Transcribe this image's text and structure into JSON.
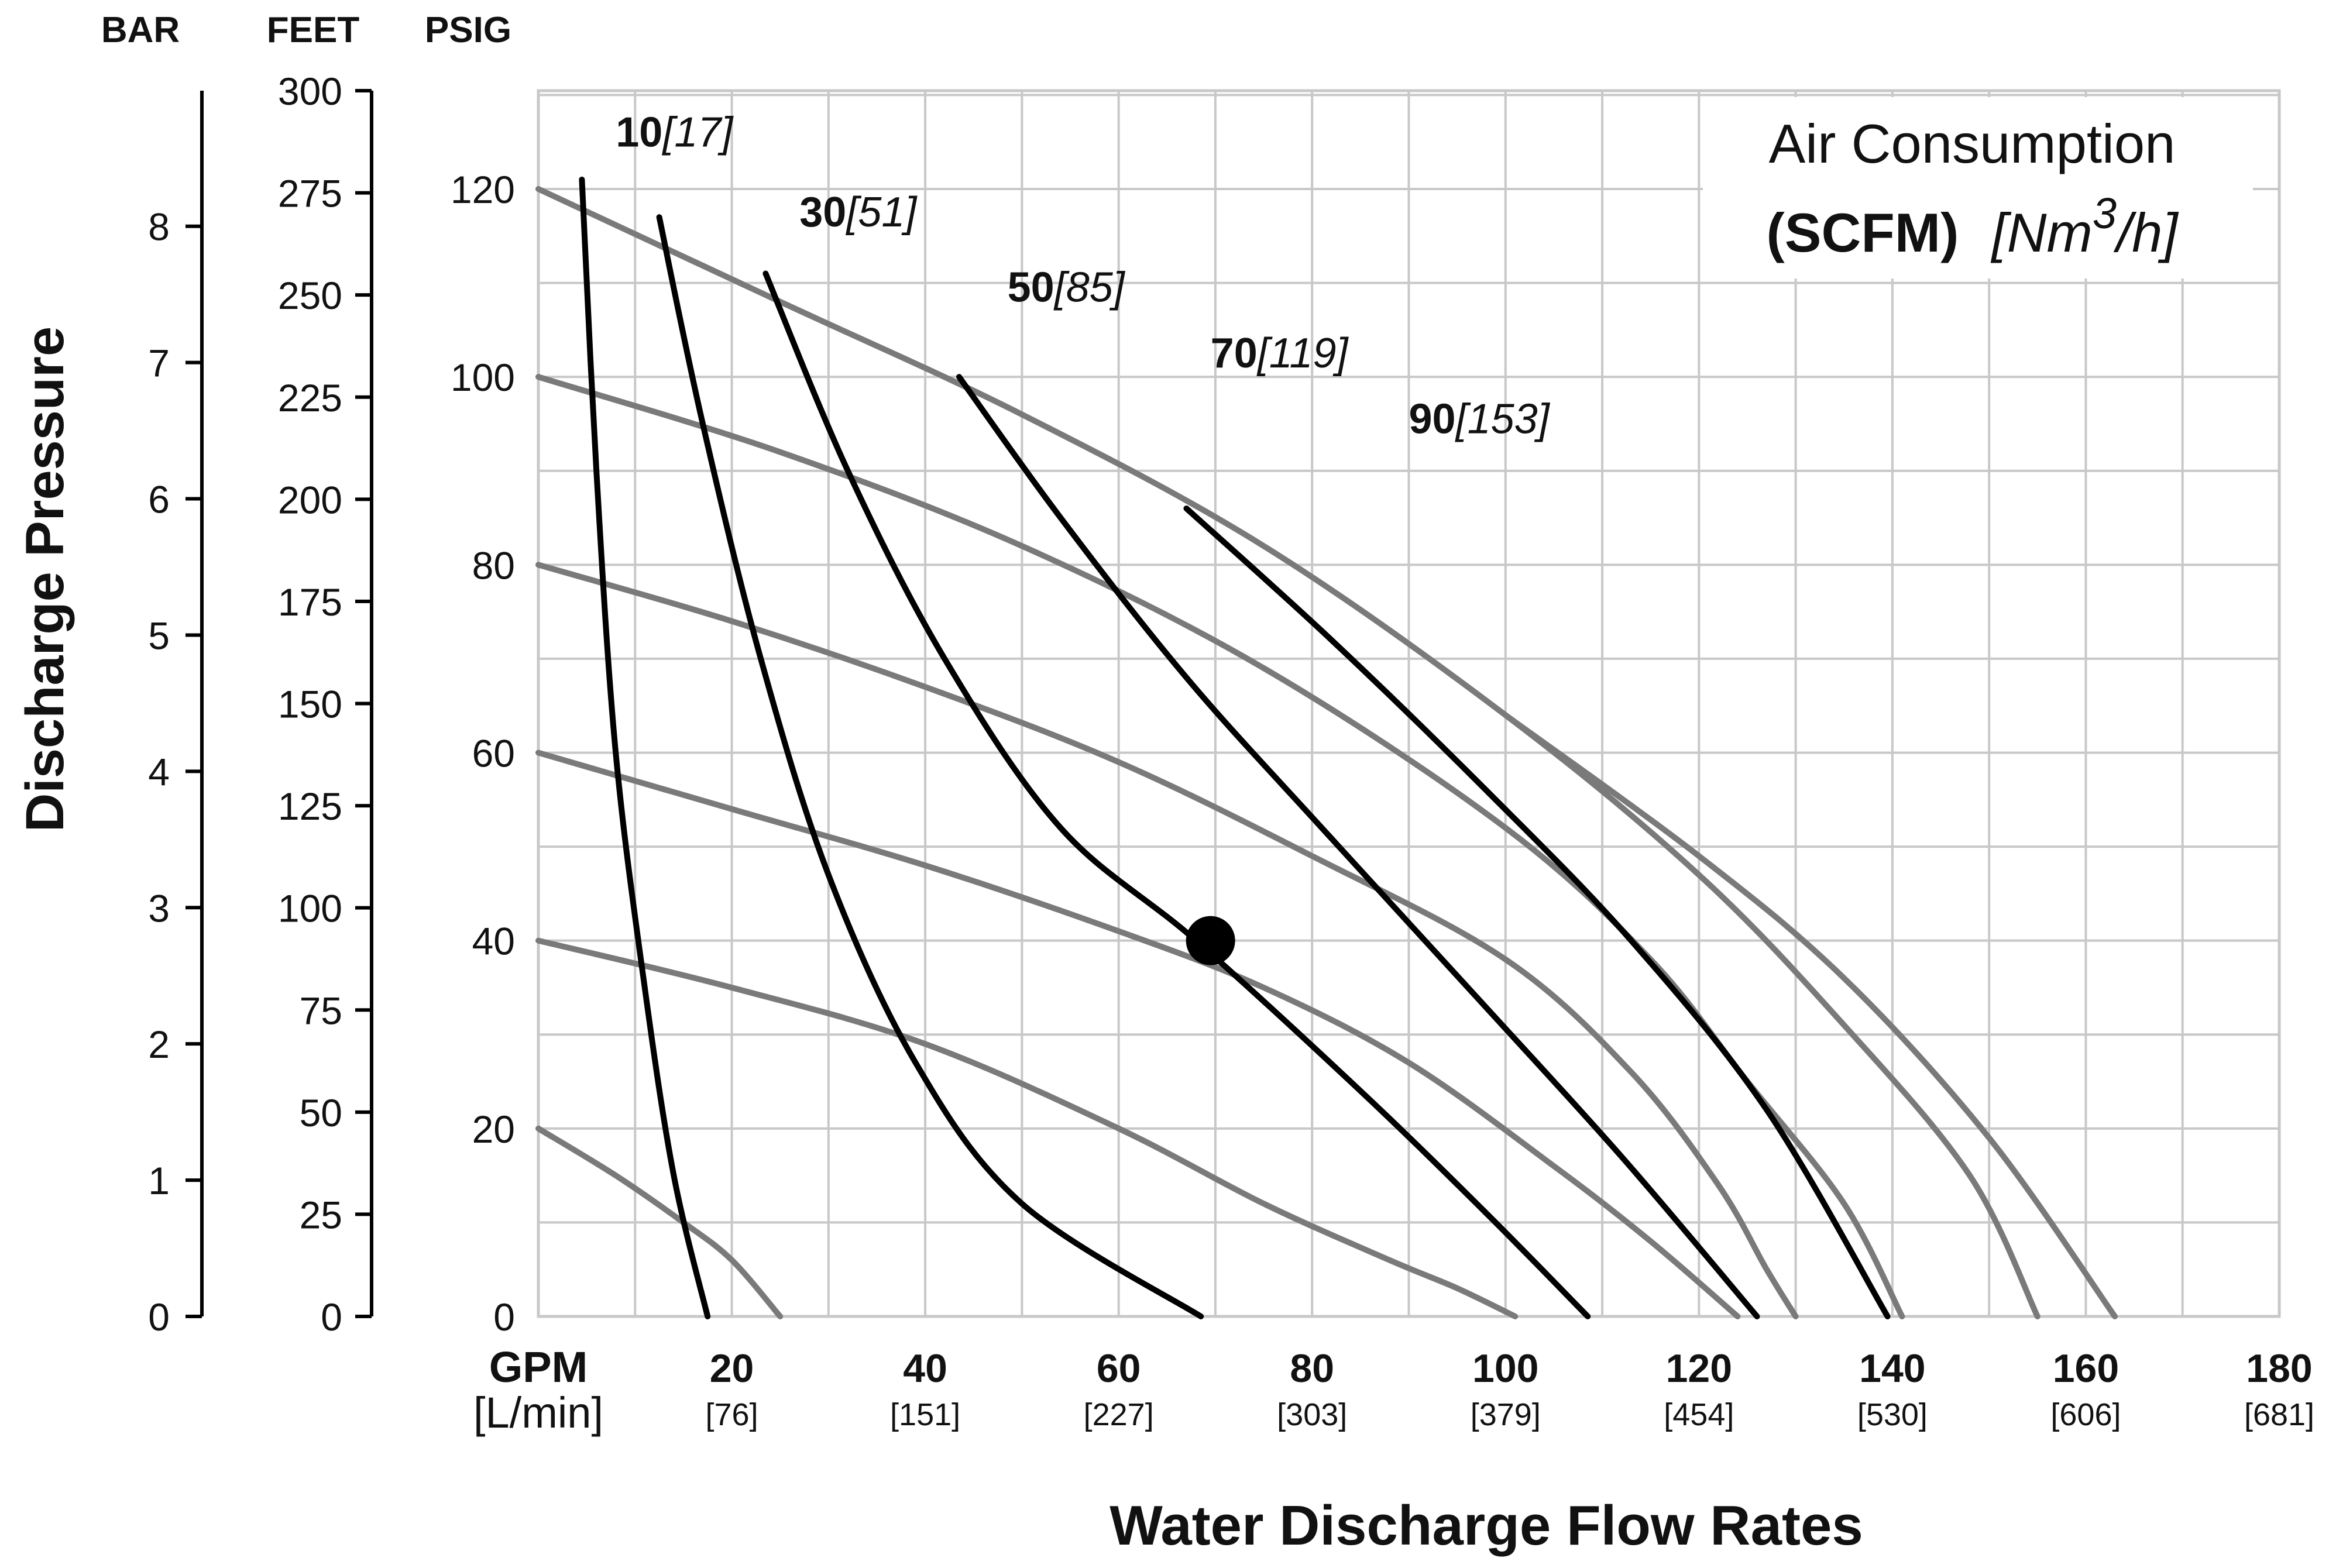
{
  "chart_data": {
    "type": "line",
    "title": "",
    "xlabel": "Water Discharge Flow Rates",
    "ylabel": "Discharge Pressure",
    "xlim": [
      0,
      180
    ],
    "ylim": [
      0,
      130
    ],
    "grid": true,
    "x_unit_label": "GPM",
    "x_alt_unit_label": "[L/min]",
    "x_ticks": [
      {
        "value": 20,
        "label": "20",
        "alt": "[76]"
      },
      {
        "value": 40,
        "label": "40",
        "alt": "[151]"
      },
      {
        "value": 60,
        "label": "60",
        "alt": "[227]"
      },
      {
        "value": 80,
        "label": "80",
        "alt": "[303]"
      },
      {
        "value": 100,
        "label": "100",
        "alt": "[379]"
      },
      {
        "value": 120,
        "label": "120",
        "alt": "[454]"
      },
      {
        "value": 140,
        "label": "140",
        "alt": "[530]"
      },
      {
        "value": 160,
        "label": "160",
        "alt": "[606]"
      },
      {
        "value": 180,
        "label": "180",
        "alt": "[681]"
      }
    ],
    "axes": {
      "bar": {
        "title": "BAR",
        "ticks": [
          {
            "value": 0,
            "label": "0"
          },
          {
            "value": 1,
            "label": "1"
          },
          {
            "value": 2,
            "label": "2"
          },
          {
            "value": 3,
            "label": "3"
          },
          {
            "value": 4,
            "label": "4"
          },
          {
            "value": 5,
            "label": "5"
          },
          {
            "value": 6,
            "label": "6"
          },
          {
            "value": 7,
            "label": "7"
          },
          {
            "value": 8,
            "label": "8"
          }
        ]
      },
      "feet": {
        "title": "FEET",
        "ticks": [
          {
            "value": 0,
            "label": "0"
          },
          {
            "value": 25,
            "label": "25"
          },
          {
            "value": 50,
            "label": "50"
          },
          {
            "value": 75,
            "label": "75"
          },
          {
            "value": 100,
            "label": "100"
          },
          {
            "value": 125,
            "label": "125"
          },
          {
            "value": 150,
            "label": "150"
          },
          {
            "value": 175,
            "label": "175"
          },
          {
            "value": 200,
            "label": "200"
          },
          {
            "value": 225,
            "label": "225"
          },
          {
            "value": 250,
            "label": "250"
          },
          {
            "value": 275,
            "label": "275"
          },
          {
            "value": 300,
            "label": "300"
          }
        ]
      },
      "psig": {
        "title": "PSIG",
        "ticks": [
          {
            "value": 0,
            "label": "0"
          },
          {
            "value": 20,
            "label": "20"
          },
          {
            "value": 40,
            "label": "40"
          },
          {
            "value": 60,
            "label": "60"
          },
          {
            "value": 80,
            "label": "80"
          },
          {
            "value": 100,
            "label": "100"
          },
          {
            "value": 120,
            "label": "120"
          }
        ]
      }
    },
    "legend": {
      "position": "top-right",
      "line1": "Air Consumption",
      "line2_bold": "(SCFM)",
      "line2_italic_a": "[Nm",
      "line2_superscript": "3",
      "line2_italic_b": "/h]"
    },
    "air_consumption_labels": [
      {
        "scfm": "10",
        "nm3h": "[17]",
        "x": 8,
        "y": 124.5
      },
      {
        "scfm": "30",
        "nm3h": "[51]",
        "x": 27,
        "y": 116
      },
      {
        "scfm": "50",
        "nm3h": "[85]",
        "x": 48.5,
        "y": 108
      },
      {
        "scfm": "70",
        "nm3h": "[119]",
        "x": 69.5,
        "y": 101
      },
      {
        "scfm": "90",
        "nm3h": "[153]",
        "x": 90,
        "y": 94
      }
    ],
    "air_consumption_curves": [
      {
        "name": "10 SCFM",
        "points": [
          [
            4.5,
            121
          ],
          [
            6,
            90
          ],
          [
            8,
            60
          ],
          [
            11,
            35
          ],
          [
            14,
            15
          ],
          [
            17.5,
            0
          ]
        ]
      },
      {
        "name": "30 SCFM",
        "points": [
          [
            12.5,
            117
          ],
          [
            17,
            95
          ],
          [
            23,
            70
          ],
          [
            30,
            47
          ],
          [
            39,
            27
          ],
          [
            50,
            12
          ],
          [
            68.5,
            0
          ]
        ]
      },
      {
        "name": "50 SCFM",
        "points": [
          [
            23.5,
            111
          ],
          [
            32,
            90
          ],
          [
            42,
            70
          ],
          [
            54,
            52
          ],
          [
            68,
            40
          ],
          [
            85,
            24
          ],
          [
            98,
            11
          ],
          [
            108.5,
            0
          ]
        ]
      },
      {
        "name": "70 SCFM",
        "points": [
          [
            43.5,
            100
          ],
          [
            54,
            85
          ],
          [
            67,
            68
          ],
          [
            81,
            52
          ],
          [
            97,
            34
          ],
          [
            112,
            17
          ],
          [
            126,
            0
          ]
        ]
      },
      {
        "name": "90 SCFM",
        "points": [
          [
            67,
            86
          ],
          [
            82,
            72
          ],
          [
            98,
            56
          ],
          [
            113,
            40
          ],
          [
            127,
            22
          ],
          [
            139.5,
            0
          ]
        ]
      }
    ],
    "pressure_curves": [
      {
        "name": "20 PSIG",
        "points": [
          [
            0,
            20
          ],
          [
            8,
            15
          ],
          [
            15,
            10
          ],
          [
            20,
            6
          ],
          [
            25,
            0
          ]
        ]
      },
      {
        "name": "40 PSIG",
        "points": [
          [
            0,
            40
          ],
          [
            20,
            35
          ],
          [
            40,
            29
          ],
          [
            60,
            20
          ],
          [
            75,
            12
          ],
          [
            88,
            6
          ],
          [
            95,
            3
          ],
          [
            101,
            0
          ]
        ]
      },
      {
        "name": "60 PSIG",
        "points": [
          [
            0,
            60
          ],
          [
            20,
            54
          ],
          [
            40,
            48
          ],
          [
            60,
            41
          ],
          [
            75,
            35
          ],
          [
            90,
            27
          ],
          [
            105,
            16
          ],
          [
            115,
            8
          ],
          [
            124,
            0
          ]
        ]
      },
      {
        "name": "80 PSIG",
        "points": [
          [
            0,
            80
          ],
          [
            20,
            74
          ],
          [
            40,
            67
          ],
          [
            60,
            59
          ],
          [
            80,
            49
          ],
          [
            100,
            38
          ],
          [
            113,
            26
          ],
          [
            122,
            14
          ],
          [
            127,
            5
          ],
          [
            130,
            0
          ]
        ]
      },
      {
        "name": "100 PSIG",
        "points": [
          [
            0,
            100
          ],
          [
            25,
            92
          ],
          [
            50,
            82
          ],
          [
            75,
            69
          ],
          [
            100,
            52
          ],
          [
            115,
            38
          ],
          [
            125,
            25
          ],
          [
            135,
            12
          ],
          [
            141,
            0
          ]
        ]
      },
      {
        "name": "120 PSIG",
        "points": [
          [
            0,
            120
          ],
          [
            25,
            108
          ],
          [
            50,
            96
          ],
          [
            75,
            82
          ],
          [
            100,
            64
          ],
          [
            120,
            47
          ],
          [
            135,
            31
          ],
          [
            148,
            15
          ],
          [
            155,
            0
          ]
        ]
      }
    ],
    "pressure_curve_tails": [
      {
        "name": "120 PSIG outer",
        "points": [
          [
            100,
            64
          ],
          [
            120,
            49
          ],
          [
            135,
            36
          ],
          [
            150,
            19
          ],
          [
            163,
            0
          ]
        ]
      }
    ],
    "operating_point": {
      "x": 69.5,
      "y": 40
    },
    "colors": {
      "pressure_curve": "#7a7a7a",
      "air_curve": "#000000",
      "grid": "#c8c8c8",
      "axis": "#000000",
      "text": "#111111"
    }
  }
}
